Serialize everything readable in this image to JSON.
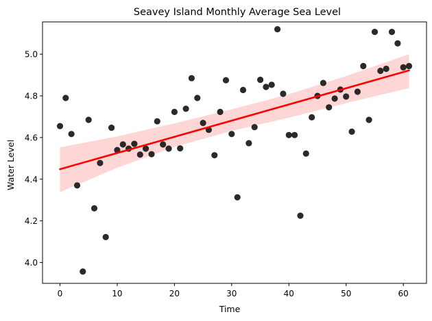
{
  "chart_data": {
    "type": "scatter",
    "title": "Seavey Island Monthly Average Sea Level",
    "xlabel": "Time",
    "ylabel": "Water Level",
    "xlim": [
      -3.05,
      64.05
    ],
    "ylim": [
      3.9,
      5.155
    ],
    "x_ticks": [
      0,
      10,
      20,
      30,
      40,
      50,
      60
    ],
    "y_ticks": [
      4.0,
      4.2,
      4.4,
      4.6,
      4.8,
      5.0
    ],
    "y_tick_labels": [
      "4.0",
      "4.2",
      "4.4",
      "4.6",
      "4.8",
      "5.0"
    ],
    "grid": false,
    "point_color": "#1f1f1f",
    "line_color": "#ff0000",
    "band_color": "#ffcccc",
    "x": [
      0,
      1,
      2,
      3,
      4,
      5,
      6,
      7,
      8,
      9,
      10,
      11,
      12,
      13,
      14,
      15,
      16,
      17,
      18,
      19,
      20,
      21,
      22,
      23,
      24,
      25,
      26,
      27,
      28,
      29,
      30,
      31,
      32,
      33,
      34,
      35,
      36,
      37,
      38,
      39,
      40,
      41,
      42,
      43,
      44,
      45,
      46,
      47,
      48,
      49,
      50,
      51,
      52,
      53,
      54,
      55,
      56,
      57,
      58,
      59,
      60,
      61
    ],
    "y": [
      4.655,
      4.79,
      4.617,
      4.37,
      3.957,
      4.685,
      4.26,
      4.478,
      4.122,
      4.647,
      4.54,
      4.567,
      4.547,
      4.57,
      4.518,
      4.547,
      4.52,
      4.678,
      4.567,
      4.547,
      4.723,
      4.548,
      4.738,
      4.885,
      4.79,
      4.67,
      4.637,
      4.515,
      4.723,
      4.875,
      4.617,
      4.313,
      4.828,
      4.573,
      4.65,
      4.877,
      4.843,
      4.853,
      5.12,
      4.81,
      4.612,
      4.612,
      4.225,
      4.523,
      4.697,
      4.8,
      4.862,
      4.745,
      4.787,
      4.83,
      4.797,
      4.628,
      4.82,
      4.943,
      4.685,
      5.107,
      4.92,
      4.93,
      5.107,
      5.052,
      4.937,
      4.943
    ],
    "regression": {
      "x": [
        0,
        61
      ],
      "y": [
        4.448,
        4.922
      ],
      "ci_x": [
        0,
        10,
        20,
        30,
        40,
        50,
        61
      ],
      "ci_lower": [
        4.338,
        4.455,
        4.555,
        4.632,
        4.695,
        4.765,
        4.837
      ],
      "ci_upper": [
        4.553,
        4.605,
        4.668,
        4.735,
        4.808,
        4.895,
        5.0
      ]
    }
  }
}
